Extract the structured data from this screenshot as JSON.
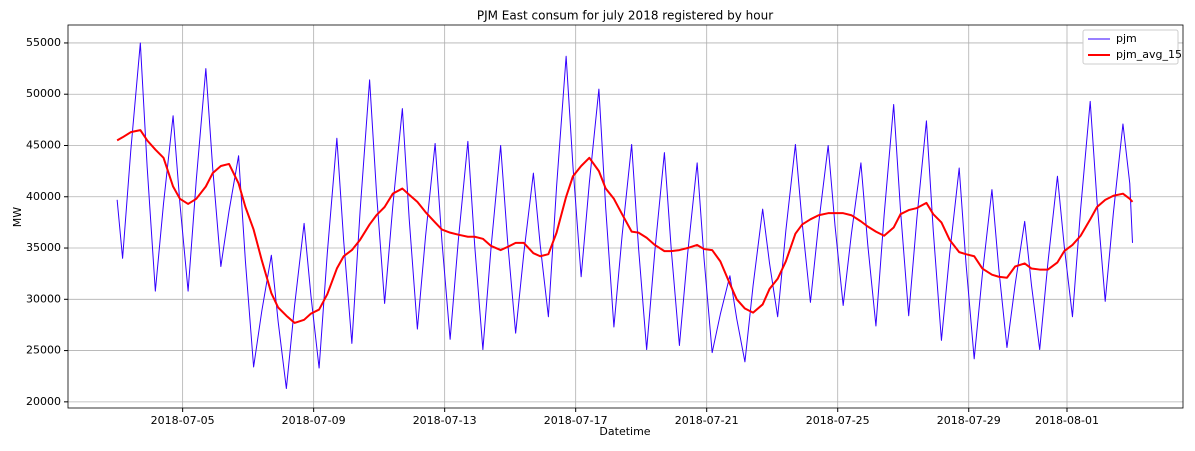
{
  "chart_data": {
    "type": "line",
    "title": "PJM East consum for july 2018 registered by hour",
    "xlabel": "Datetime",
    "ylabel": "MW",
    "x": [
      "2018-07-03 00:00",
      "2018-07-03 04:00",
      "2018-07-03 10:00",
      "2018-07-03 17:00",
      "2018-07-03 22:00",
      "2018-07-04 04:00",
      "2018-07-04 10:00",
      "2018-07-04 17:00",
      "2018-07-04 22:00",
      "2018-07-05 04:00",
      "2018-07-05 10:00",
      "2018-07-05 17:00",
      "2018-07-05 22:00",
      "2018-07-06 04:00",
      "2018-07-06 10:00",
      "2018-07-06 17:00",
      "2018-07-06 22:00",
      "2018-07-07 04:00",
      "2018-07-07 10:00",
      "2018-07-07 17:00",
      "2018-07-07 22:00",
      "2018-07-08 04:00",
      "2018-07-08 10:00",
      "2018-07-08 17:00",
      "2018-07-08 22:00",
      "2018-07-09 04:00",
      "2018-07-09 10:00",
      "2018-07-09 17:00",
      "2018-07-09 22:00",
      "2018-07-10 04:00",
      "2018-07-10 10:00",
      "2018-07-10 17:00",
      "2018-07-10 22:00",
      "2018-07-11 04:00",
      "2018-07-11 10:00",
      "2018-07-11 17:00",
      "2018-07-11 22:00",
      "2018-07-12 04:00",
      "2018-07-12 10:00",
      "2018-07-12 17:00",
      "2018-07-12 22:00",
      "2018-07-13 04:00",
      "2018-07-13 10:00",
      "2018-07-13 17:00",
      "2018-07-13 22:00",
      "2018-07-14 04:00",
      "2018-07-14 10:00",
      "2018-07-14 17:00",
      "2018-07-14 22:00",
      "2018-07-15 04:00",
      "2018-07-15 10:00",
      "2018-07-15 17:00",
      "2018-07-15 22:00",
      "2018-07-16 04:00",
      "2018-07-16 10:00",
      "2018-07-16 17:00",
      "2018-07-16 22:00",
      "2018-07-17 04:00",
      "2018-07-17 10:00",
      "2018-07-17 17:00",
      "2018-07-17 22:00",
      "2018-07-18 04:00",
      "2018-07-18 10:00",
      "2018-07-18 17:00",
      "2018-07-18 22:00",
      "2018-07-19 04:00",
      "2018-07-19 10:00",
      "2018-07-19 17:00",
      "2018-07-19 22:00",
      "2018-07-20 04:00",
      "2018-07-20 10:00",
      "2018-07-20 17:00",
      "2018-07-20 22:00",
      "2018-07-21 04:00",
      "2018-07-21 10:00",
      "2018-07-21 17:00",
      "2018-07-21 22:00",
      "2018-07-22 04:00",
      "2018-07-22 10:00",
      "2018-07-22 17:00",
      "2018-07-22 22:00",
      "2018-07-23 04:00",
      "2018-07-23 10:00",
      "2018-07-23 17:00",
      "2018-07-23 22:00",
      "2018-07-24 04:00",
      "2018-07-24 10:00",
      "2018-07-24 17:00",
      "2018-07-24 22:00",
      "2018-07-25 04:00",
      "2018-07-25 10:00",
      "2018-07-25 17:00",
      "2018-07-25 22:00",
      "2018-07-26 04:00",
      "2018-07-26 10:00",
      "2018-07-26 17:00",
      "2018-07-26 22:00",
      "2018-07-27 04:00",
      "2018-07-27 10:00",
      "2018-07-27 17:00",
      "2018-07-27 22:00",
      "2018-07-28 04:00",
      "2018-07-28 10:00",
      "2018-07-28 17:00",
      "2018-07-28 22:00",
      "2018-07-29 04:00",
      "2018-07-29 10:00",
      "2018-07-29 17:00",
      "2018-07-29 22:00",
      "2018-07-30 04:00",
      "2018-07-30 10:00",
      "2018-07-30 17:00",
      "2018-07-30 22:00",
      "2018-07-31 04:00",
      "2018-07-31 10:00",
      "2018-07-31 17:00",
      "2018-07-31 22:00",
      "2018-08-01 04:00",
      "2018-08-01 10:00",
      "2018-08-01 17:00",
      "2018-08-01 22:00",
      "2018-08-02 04:00",
      "2018-08-02 10:00",
      "2018-08-02 17:00",
      "2018-08-02 22:00",
      "2018-08-03 00:00"
    ],
    "series": [
      {
        "name": "pjm",
        "color": "#3300ff",
        "width": 1,
        "values": [
          39700,
          34000,
          44500,
          55000,
          42900,
          30800,
          39350,
          47900,
          39350,
          30800,
          41650,
          52500,
          42850,
          33200,
          38600,
          44000,
          33700,
          23400,
          28850,
          34300,
          27800,
          21300,
          29350,
          37400,
          30350,
          23300,
          34500,
          45700,
          35700,
          25700,
          38550,
          51400,
          40500,
          29600,
          39100,
          48600,
          37850,
          27100,
          36150,
          45200,
          35650,
          26100,
          35750,
          45400,
          35250,
          25100,
          35050,
          45000,
          35850,
          26700,
          34500,
          42300,
          35300,
          28300,
          41000,
          53700,
          42950,
          32200,
          41350,
          50500,
          38900,
          27300,
          36200,
          45100,
          35100,
          25100,
          34700,
          44300,
          34900,
          25500,
          34400,
          43300,
          34050,
          24800,
          28550,
          32300,
          28100,
          23900,
          31350,
          38800,
          33550,
          28300,
          36700,
          45100,
          37400,
          29700,
          37350,
          45000,
          37200,
          29400,
          36350,
          43300,
          35350,
          27400,
          38200,
          49000,
          38700,
          28400,
          37900,
          47400,
          36700,
          26000,
          34400,
          42800,
          33500,
          24200,
          32450,
          40700,
          33000,
          25300,
          31450,
          37600,
          31350,
          25100,
          33550,
          42000,
          35150,
          28300,
          38800,
          49300,
          39550,
          29800,
          38450,
          47100,
          41300,
          35500
        ]
      },
      {
        "name": "pjm_avg_15",
        "color": "#ff0000",
        "width": 2,
        "values": [
          45500,
          45800,
          46300,
          46500,
          45500,
          44600,
          43800,
          41000,
          39800,
          39300,
          39800,
          41000,
          42300,
          43000,
          43200,
          41300,
          39000,
          36800,
          33800,
          30600,
          29200,
          28400,
          27700,
          28000,
          28600,
          29000,
          30500,
          33000,
          34200,
          34800,
          35800,
          37300,
          38200,
          39000,
          40300,
          40800,
          40200,
          39500,
          38500,
          37500,
          36800,
          36500,
          36300,
          36100,
          36100,
          35900,
          35200,
          34800,
          35100,
          35500,
          35500,
          34500,
          34200,
          34400,
          36500,
          40000,
          42000,
          43000,
          43800,
          42500,
          40800,
          39800,
          38300,
          36600,
          36500,
          36000,
          35300,
          34700,
          34700,
          34800,
          35000,
          35300,
          34900,
          34800,
          33700,
          31500,
          30000,
          29100,
          28700,
          29500,
          31000,
          32000,
          33700,
          36400,
          37300,
          37800,
          38200,
          38400,
          38400,
          38400,
          38200,
          37600,
          37100,
          36600,
          36200,
          37000,
          38300,
          38700,
          38900,
          39400,
          38300,
          37500,
          35800,
          34600,
          34400,
          34200,
          33000,
          32400,
          32200,
          32100,
          33200,
          33500,
          33000,
          32900,
          32900,
          33600,
          34700,
          35300,
          36200,
          37800,
          39000,
          39700,
          40100,
          40300,
          39800,
          39500
        ]
      }
    ],
    "xlim": [
      "2018-07-01 12:00",
      "2018-08-04 13:00"
    ],
    "xticks": [
      "2018-07-05",
      "2018-07-09",
      "2018-07-13",
      "2018-07-17",
      "2018-07-21",
      "2018-07-25",
      "2018-07-29",
      "2018-08-01"
    ],
    "ylim": [
      19400,
      56750
    ],
    "yticks": [
      20000,
      25000,
      30000,
      35000,
      40000,
      45000,
      50000,
      55000
    ],
    "grid": true,
    "legend": "upper right"
  }
}
